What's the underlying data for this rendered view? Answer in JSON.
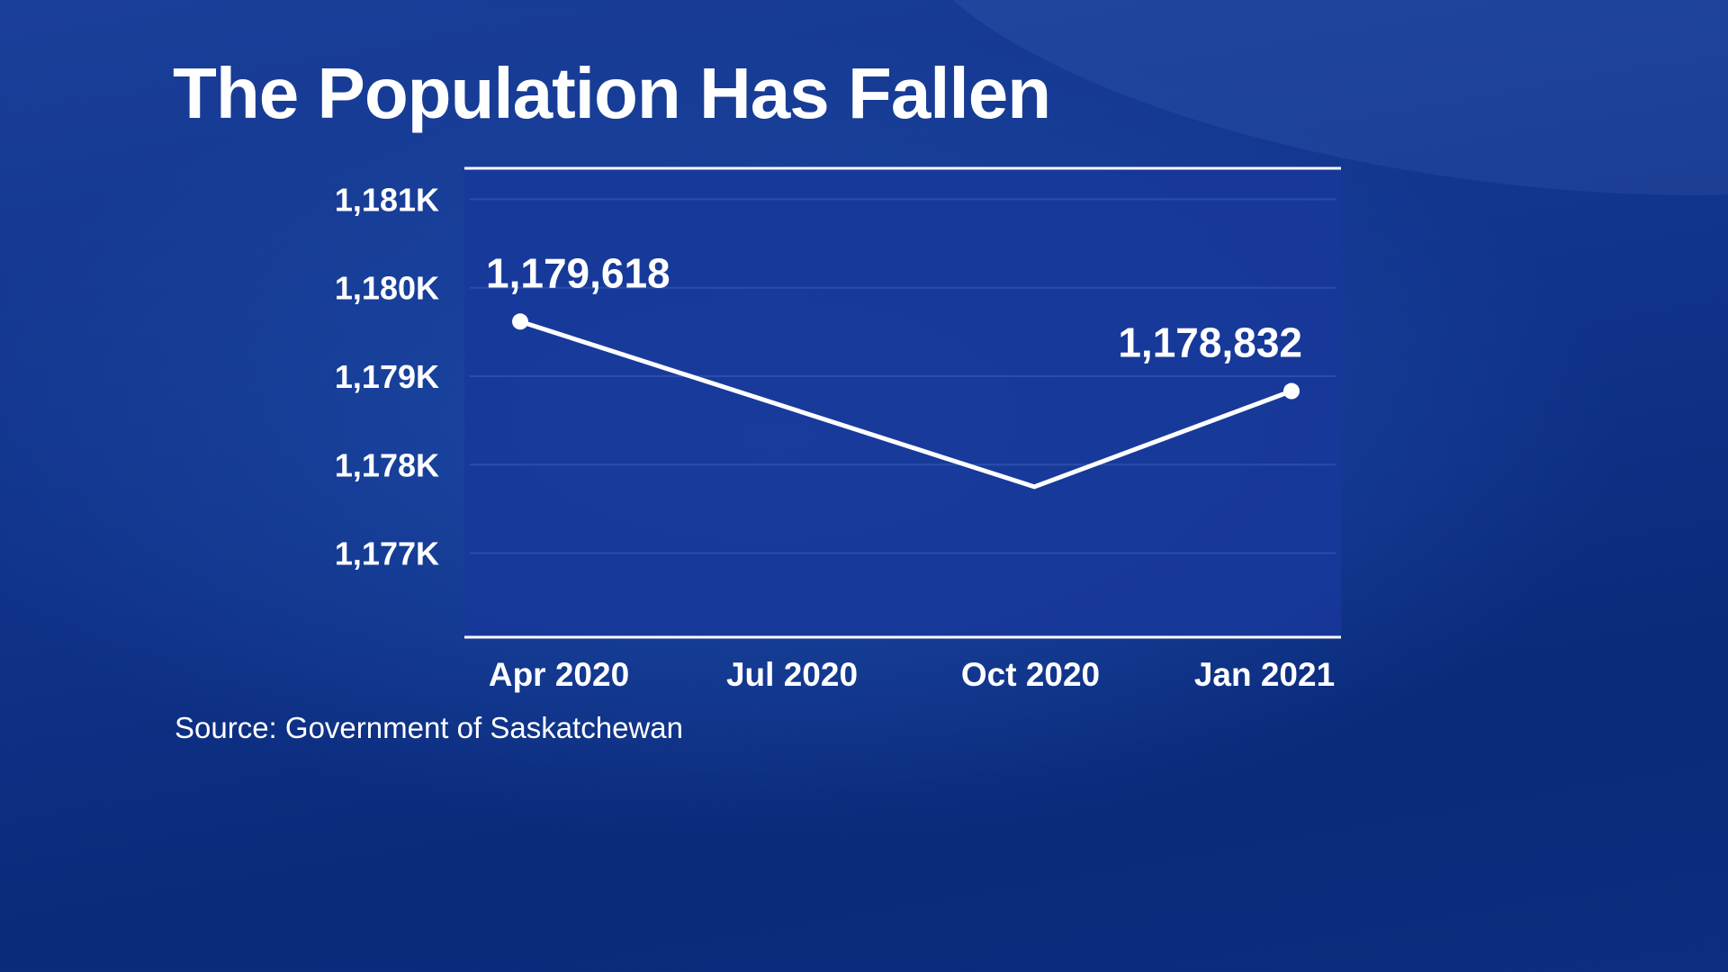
{
  "title": "The Population Has Fallen",
  "source": "Source: Government of Saskatchewan",
  "colors": {
    "background": "#10338a",
    "plot_area": "#17389a",
    "line": "#ffffff",
    "text": "#ffffff"
  },
  "chart_data": {
    "type": "line",
    "title": "The Population Has Fallen",
    "x": [
      "Apr 2020",
      "Jul 2020",
      "Oct 2020",
      "Jan 2021"
    ],
    "series": [
      {
        "points": [
          {
            "x": "Apr 2020",
            "y": 1179618,
            "label": "1,179,618"
          },
          {
            "x": "Oct 2020",
            "y": 1177750
          },
          {
            "x": "Jan 2021",
            "y": 1178832,
            "label": "1,178,832"
          }
        ]
      }
    ],
    "yticks": [
      {
        "value": 1177000,
        "label": "1,177K"
      },
      {
        "value": 1178000,
        "label": "1,178K"
      },
      {
        "value": 1179000,
        "label": "1,179K"
      },
      {
        "value": 1180000,
        "label": "1,180K"
      },
      {
        "value": 1181000,
        "label": "1,181K"
      }
    ],
    "ylim": [
      1176050,
      1181350
    ],
    "xlim": [
      "Apr 2020",
      "Jan 2021"
    ],
    "xlabel": "",
    "ylabel": "",
    "grid": true,
    "legend": "none"
  }
}
